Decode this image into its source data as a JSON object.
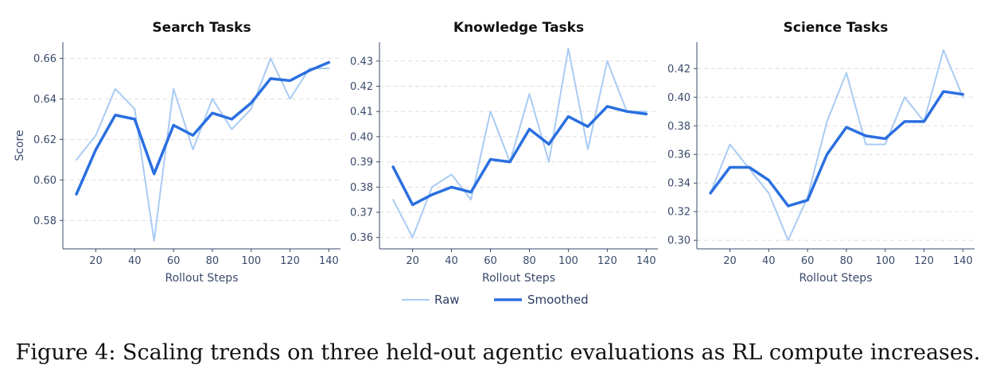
{
  "chart_data": [
    {
      "type": "line",
      "title": "Search Tasks",
      "xlabel": "Rollout Steps",
      "ylabel": "Score",
      "x": [
        10,
        20,
        30,
        40,
        50,
        60,
        70,
        80,
        90,
        100,
        110,
        120,
        130,
        140
      ],
      "xticks": [
        20,
        40,
        60,
        80,
        100,
        120,
        140
      ],
      "yticks": [
        0.58,
        0.6,
        0.62,
        0.64,
        0.66
      ],
      "ytick_labels": [
        "0.58",
        "0.60",
        "0.62",
        "0.64",
        "0.66"
      ],
      "ylim": [
        0.566,
        0.668
      ],
      "grid": "horizontal dashed",
      "series": [
        {
          "name": "Raw",
          "values": [
            0.61,
            0.622,
            0.645,
            0.635,
            0.57,
            0.645,
            0.615,
            0.64,
            0.625,
            0.635,
            0.66,
            0.64,
            0.655,
            0.655
          ]
        },
        {
          "name": "Smoothed",
          "values": [
            0.593,
            0.615,
            0.632,
            0.63,
            0.603,
            0.627,
            0.622,
            0.633,
            0.63,
            0.638,
            0.65,
            0.649,
            0.654,
            0.658
          ]
        }
      ]
    },
    {
      "type": "line",
      "title": "Knowledge Tasks",
      "xlabel": "Rollout Steps",
      "ylabel": "",
      "x": [
        10,
        20,
        30,
        40,
        50,
        60,
        70,
        80,
        90,
        100,
        110,
        120,
        130,
        140
      ],
      "xticks": [
        20,
        40,
        60,
        80,
        100,
        120,
        140
      ],
      "yticks": [
        0.36,
        0.37,
        0.38,
        0.39,
        0.4,
        0.41,
        0.42,
        0.43
      ],
      "ytick_labels": [
        "0.36",
        "0.37",
        "0.38",
        "0.39",
        "0.40",
        "0.41",
        "0.42",
        "0.43"
      ],
      "ylim": [
        0.3555,
        0.4375
      ],
      "grid": "horizontal dashed",
      "series": [
        {
          "name": "Raw",
          "values": [
            0.375,
            0.36,
            0.38,
            0.385,
            0.375,
            0.41,
            0.39,
            0.417,
            0.39,
            0.435,
            0.395,
            0.43,
            0.41,
            0.41
          ]
        },
        {
          "name": "Smoothed",
          "values": [
            0.388,
            0.373,
            0.377,
            0.38,
            0.378,
            0.391,
            0.39,
            0.403,
            0.397,
            0.408,
            0.404,
            0.412,
            0.41,
            0.409
          ]
        }
      ]
    },
    {
      "type": "line",
      "title": "Science Tasks",
      "xlabel": "Rollout Steps",
      "ylabel": "",
      "x": [
        10,
        20,
        30,
        40,
        50,
        60,
        70,
        80,
        90,
        100,
        110,
        120,
        130,
        140
      ],
      "xticks": [
        20,
        40,
        60,
        80,
        100,
        120,
        140
      ],
      "yticks": [
        0.3,
        0.32,
        0.34,
        0.36,
        0.38,
        0.4,
        0.42
      ],
      "ytick_labels": [
        "0.30",
        "0.32",
        "0.34",
        "0.36",
        "0.38",
        "0.40",
        "0.42"
      ],
      "ylim": [
        0.294,
        0.4385
      ],
      "grid": "horizontal dashed",
      "series": [
        {
          "name": "Raw",
          "values": [
            0.333,
            0.367,
            0.35,
            0.333,
            0.3,
            0.33,
            0.383,
            0.417,
            0.367,
            0.367,
            0.4,
            0.383,
            0.433,
            0.4
          ]
        },
        {
          "name": "Smoothed",
          "values": [
            0.333,
            0.351,
            0.351,
            0.342,
            0.324,
            0.328,
            0.36,
            0.379,
            0.373,
            0.371,
            0.383,
            0.383,
            0.404,
            0.402
          ]
        }
      ]
    }
  ],
  "legend": {
    "placement": "bottom-center",
    "items": [
      {
        "label": "Raw",
        "color": "#a9cbf3"
      },
      {
        "label": "Smoothed",
        "color": "#2a6fe0"
      }
    ]
  },
  "colors": {
    "raw": "#a9cbf3",
    "smoothed": "#2a6fe0",
    "axis": "#3a4a6b",
    "grid": "#dddddd"
  },
  "caption": "Figure 4: Scaling trends on three held-out agentic evaluations as RL compute increases."
}
